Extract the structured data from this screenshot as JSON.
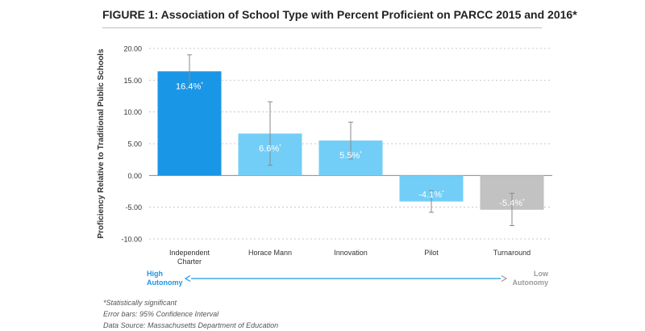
{
  "title": "FIGURE 1: Association of School Type with Percent Proficient on PARCC 2015 and 2016*",
  "chart_data": {
    "type": "bar",
    "ylabel": "Proficiency Relative to Traditional Public Schools",
    "ylim": [
      -10,
      20
    ],
    "yticks": [
      "20.00",
      "15.00",
      "10.00",
      "5.00",
      "0.00",
      "-5.00",
      "-10.00"
    ],
    "ytick_values": [
      20,
      15,
      10,
      5,
      0,
      -5,
      -10
    ],
    "grid": true,
    "categories": [
      [
        "Independent",
        "Charter"
      ],
      [
        "Horace Mann"
      ],
      [
        "Innovation"
      ],
      [
        "Pilot"
      ],
      [
        "Turnaround"
      ]
    ],
    "values": [
      16.4,
      6.6,
      5.5,
      -4.1,
      -5.4
    ],
    "labels": [
      "16.4%",
      "6.6%",
      "5.5%",
      "-4.1%",
      "-5.4%"
    ],
    "label_mark": "*",
    "error_low": [
      13.8,
      1.6,
      2.6,
      -5.8,
      -7.9
    ],
    "error_high": [
      19.0,
      11.6,
      8.4,
      -2.4,
      -2.8
    ],
    "colors": [
      "#1a96e6",
      "#72cef7",
      "#72cef7",
      "#72cef7",
      "#c2c2c2"
    ],
    "errorbar_color": "#8a8a8a"
  },
  "autonomy": {
    "high_label": [
      "High",
      "Autonomy"
    ],
    "low_label": [
      "Low",
      "Autonomy"
    ],
    "high_color": "#1a96e6",
    "low_color": "#9b9b9b"
  },
  "footnotes": {
    "significance": "*Statistically significant",
    "error_bars": "Error bars: 95% Confidence Interval",
    "source": "Data Source: Massachusetts Department of Education"
  }
}
